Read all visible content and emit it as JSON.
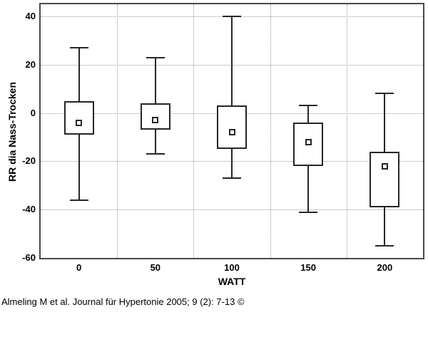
{
  "caption": {
    "text": "Almeling M et al. Journal für Hypertonie 2005; 9 (2): 7-13 ©"
  },
  "colors": {
    "background": "#ffffff",
    "frame": "#4a4a4a",
    "gridline": "#999999",
    "box_line": "#262626",
    "text": "#000000"
  },
  "chart_data": {
    "type": "box",
    "title": "",
    "xlabel": "WATT",
    "ylabel": "RR dia Nass-Trocken",
    "categories": [
      "0",
      "50",
      "100",
      "150",
      "200"
    ],
    "ylim": [
      -60,
      45
    ],
    "yticks": [
      40,
      20,
      0,
      -20,
      -40,
      -60
    ],
    "grid_y": [
      40,
      20,
      0,
      -20,
      -40
    ],
    "grid_style": "dotted",
    "legend": "none",
    "boxes": [
      {
        "category": "0",
        "min": -36,
        "q1": -9,
        "median": -4,
        "q3": 5,
        "max": 27
      },
      {
        "category": "50",
        "min": -17,
        "q1": -7,
        "median": -3,
        "q3": 4,
        "max": 23
      },
      {
        "category": "100",
        "min": -27,
        "q1": -15,
        "median": -8,
        "q3": 3,
        "max": 40
      },
      {
        "category": "150",
        "min": -41,
        "q1": -22,
        "median": -12,
        "q3": -4,
        "max": 3
      },
      {
        "category": "200",
        "min": -55,
        "q1": -39,
        "median": -22,
        "q3": -16,
        "max": 8
      }
    ]
  }
}
